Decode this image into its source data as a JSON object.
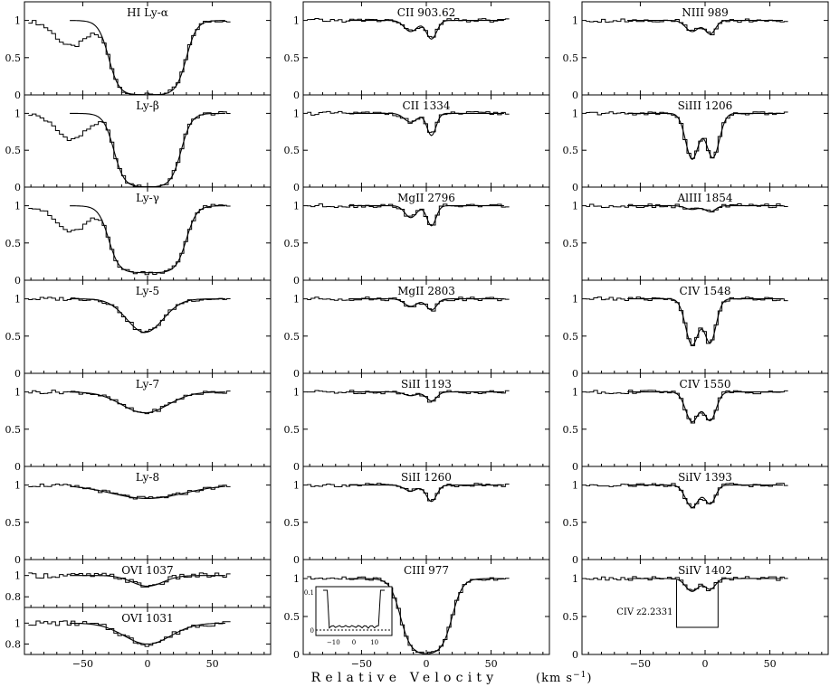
{
  "figure": {
    "xlabel": "Relative Velocity",
    "xunit": "(km s",
    "xunit_sup": "−1",
    "xunit_close": ")"
  },
  "chart_data": {
    "type": "line",
    "layout": "stacked-panels-3-columns",
    "xlim": [
      -95,
      95
    ],
    "xticks": [
      -50,
      0,
      50
    ],
    "series_types": [
      "observed-histogram",
      "model-fit"
    ],
    "columns": [
      {
        "panels": [
          {
            "label": "HI Ly-α",
            "ylim": [
              0,
              1.25
            ],
            "yticks": [
              "0",
              "0.5",
              "1"
            ],
            "depth": 1.0,
            "halfwidth": 30,
            "components": [
              [
                0,
                1.0,
                28
              ]
            ]
          },
          {
            "label": "Ly-β",
            "ylim": [
              0,
              1.25
            ],
            "yticks": [
              "0",
              "0.5",
              "1"
            ],
            "depth": 1.0,
            "halfwidth": 26,
            "components": [
              [
                0,
                1.0,
                24
              ]
            ]
          },
          {
            "label": "Ly-γ",
            "ylim": [
              0,
              1.25
            ],
            "yticks": [
              "0",
              "0.5",
              "1"
            ],
            "depth": 0.9,
            "halfwidth": 30,
            "components": [
              [
                0,
                0.9,
                26
              ]
            ]
          },
          {
            "label": "Ly-5",
            "ylim": [
              0,
              1.25
            ],
            "yticks": [
              "0",
              "0.5",
              "1"
            ],
            "components": [
              [
                -2,
                0.45,
                14
              ]
            ]
          },
          {
            "label": "Ly-7",
            "ylim": [
              0,
              1.25
            ],
            "yticks": [
              "0",
              "0.5",
              "1"
            ],
            "components": [
              [
                -2,
                0.28,
                18
              ]
            ]
          },
          {
            "label": "Ly-8",
            "ylim": [
              0,
              1.25
            ],
            "yticks": [
              "0",
              "0.5",
              "1"
            ],
            "components": [
              [
                0,
                0.18,
                28
              ]
            ]
          },
          {
            "label": "OVI 1037",
            "ylim": [
              0.7,
              1.15
            ],
            "yticks": [
              "0.8",
              "1"
            ],
            "components": [
              [
                0,
                0.1,
                12
              ]
            ]
          },
          {
            "label": "OVI 1031",
            "ylim": [
              0.7,
              1.15
            ],
            "yticks": [
              "0.8",
              "1"
            ],
            "components": [
              [
                0,
                0.2,
                18
              ]
            ]
          }
        ]
      },
      {
        "panels": [
          {
            "label": "CII 903.62",
            "ylim": [
              0,
              1.25
            ],
            "yticks": [
              "0",
              "0.5",
              "1"
            ],
            "components": [
              [
                -12,
                0.15,
                5
              ],
              [
                4,
                0.25,
                4
              ]
            ]
          },
          {
            "label": "CII 1334",
            "ylim": [
              0,
              1.25
            ],
            "yticks": [
              "0",
              "0.5",
              "1"
            ],
            "components": [
              [
                -12,
                0.12,
                5
              ],
              [
                4,
                0.3,
                3.5
              ]
            ]
          },
          {
            "label": "MgII 2796",
            "ylim": [
              0,
              1.25
            ],
            "yticks": [
              "0",
              "0.5",
              "1"
            ],
            "components": [
              [
                -12,
                0.16,
                4.5
              ],
              [
                4,
                0.27,
                3.5
              ]
            ]
          },
          {
            "label": "MgII 2803",
            "ylim": [
              0,
              1.25
            ],
            "yticks": [
              "0",
              "0.5",
              "1"
            ],
            "components": [
              [
                -12,
                0.1,
                5
              ],
              [
                4,
                0.15,
                4
              ]
            ]
          },
          {
            "label": "SiII 1193",
            "ylim": [
              0,
              1.25
            ],
            "yticks": [
              "0",
              "0.5",
              "1"
            ],
            "components": [
              [
                -12,
                0.05,
                5
              ],
              [
                4,
                0.12,
                4
              ]
            ]
          },
          {
            "label": "SiII 1260",
            "ylim": [
              0,
              1.25
            ],
            "yticks": [
              "0",
              "0.5",
              "1"
            ],
            "components": [
              [
                -12,
                0.08,
                5
              ],
              [
                4,
                0.22,
                4
              ]
            ]
          },
          {
            "label": "CIII 977",
            "ylim": [
              0,
              1.25
            ],
            "yticks": [
              "0",
              "0.5",
              "1"
            ],
            "depth": 1.0,
            "halfwidth": 20,
            "components": [
              [
                0,
                1.0,
                18
              ]
            ],
            "inset": {
              "yticks": [
                "0",
                "0.1"
              ],
              "xticks": [
                "−10",
                "0",
                "10"
              ]
            }
          }
        ]
      },
      {
        "panels": [
          {
            "label": "NIII 989",
            "ylim": [
              0,
              1.25
            ],
            "yticks": [
              "0",
              "0.5",
              "1"
            ],
            "components": [
              [
                -10,
                0.15,
                5
              ],
              [
                4,
                0.18,
                4
              ]
            ]
          },
          {
            "label": "SiIII 1206",
            "ylim": [
              0,
              1.25
            ],
            "yticks": [
              "0",
              "0.5",
              "1"
            ],
            "components": [
              [
                -10,
                0.62,
                5
              ],
              [
                6,
                0.6,
                5
              ]
            ]
          },
          {
            "label": "AlIII 1854",
            "ylim": [
              0,
              1.25
            ],
            "yticks": [
              "0.5",
              "1"
            ],
            "components": [
              [
                -10,
                0.05,
                5
              ],
              [
                4,
                0.08,
                4
              ]
            ]
          },
          {
            "label": "CIV 1548",
            "ylim": [
              0,
              1.25
            ],
            "yticks": [
              "0",
              "0.5",
              "1"
            ],
            "components": [
              [
                -10,
                0.62,
                5
              ],
              [
                4,
                0.58,
                4.5
              ]
            ]
          },
          {
            "label": "CIV 1550",
            "ylim": [
              0,
              1.25
            ],
            "yticks": [
              "0",
              "0.5",
              "1"
            ],
            "components": [
              [
                -10,
                0.4,
                5
              ],
              [
                4,
                0.38,
                4.5
              ]
            ]
          },
          {
            "label": "SiIV 1393",
            "ylim": [
              0,
              1.25
            ],
            "yticks": [
              "0",
              "0.5",
              "1"
            ],
            "components": [
              [
                -10,
                0.3,
                5
              ],
              [
                4,
                0.25,
                4
              ]
            ]
          },
          {
            "label": "SiIV 1402",
            "ylim": [
              0,
              1.25
            ],
            "yticks": [
              "0",
              "0.5",
              "1"
            ],
            "components": [
              [
                -10,
                0.17,
                5
              ],
              [
                4,
                0.14,
                4
              ]
            ],
            "annotation": "CIV z2.2331"
          }
        ]
      }
    ]
  }
}
